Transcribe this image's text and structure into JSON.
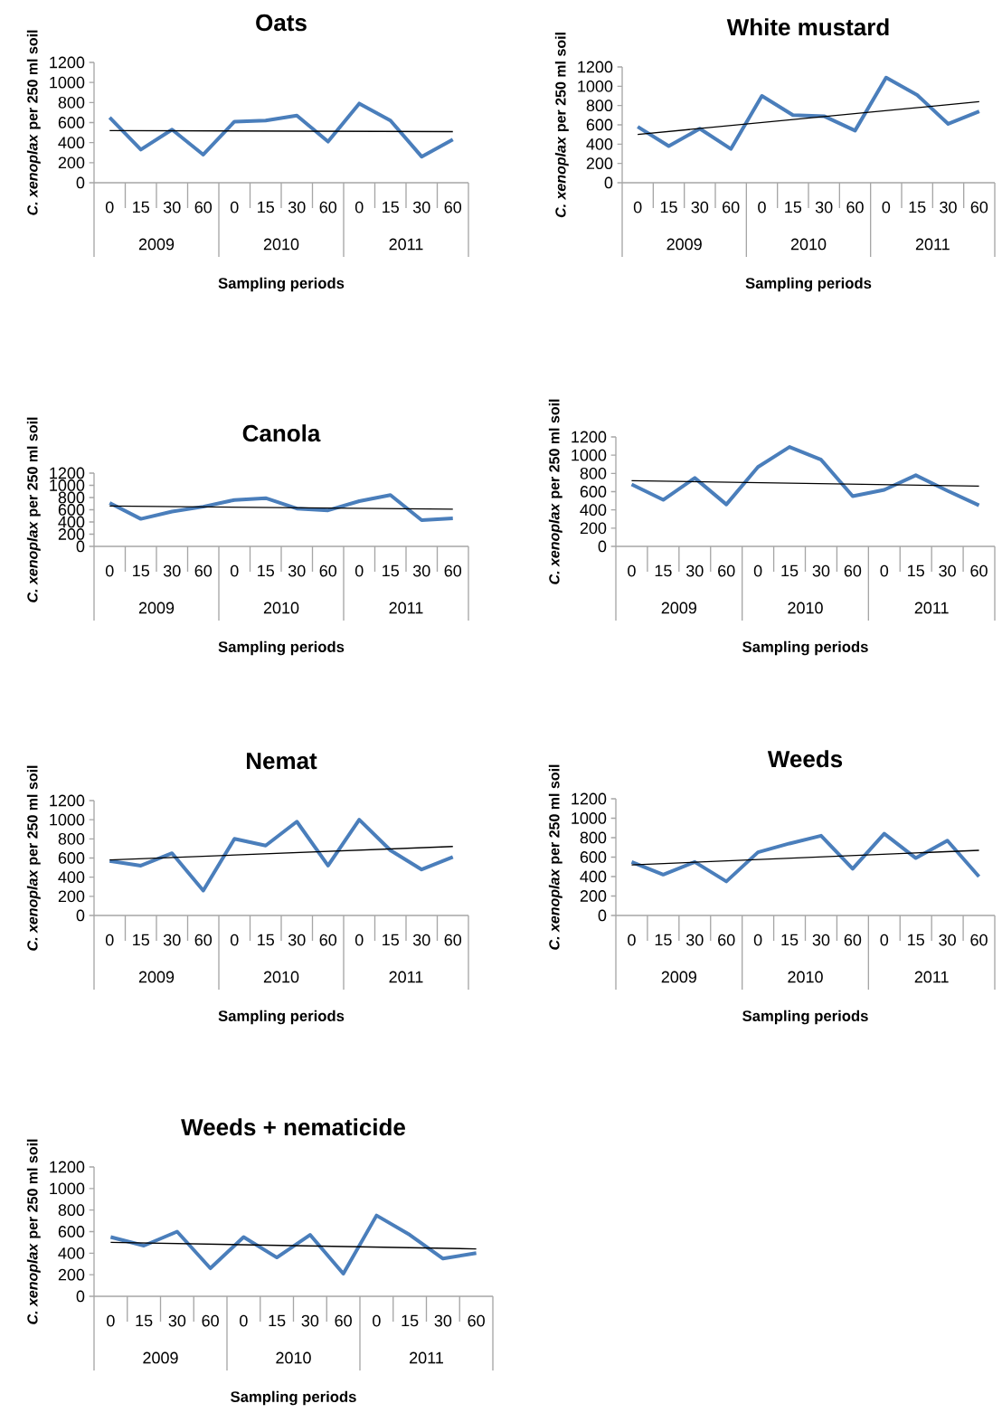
{
  "chart_data": [
    {
      "type": "line",
      "title": "Oats",
      "xlabel": "Sampling periods",
      "ylabel": "*C. xenoplax*  per 250 ml soil",
      "categories": [
        "0",
        "15",
        "30",
        "60",
        "0",
        "15",
        "30",
        "60",
        "0",
        "15",
        "30",
        "60"
      ],
      "annotations": [
        "2009",
        "2010",
        "2011"
      ],
      "ylim": [
        0,
        1200
      ],
      "yticks": [
        0,
        200,
        400,
        600,
        800,
        1000,
        1200
      ],
      "marker": "none",
      "series": [
        {
          "color": "#4a7ebb",
          "values": [
            650,
            330,
            530,
            280,
            610,
            620,
            670,
            410,
            790,
            620,
            260,
            430
          ]
        },
        {
          "type": "line",
          "color": "#000000",
          "values": [
            520,
            null,
            null,
            null,
            null,
            null,
            null,
            null,
            null,
            null,
            null,
            510
          ]
        }
      ]
    },
    {
      "type": "line",
      "title": "White mustard",
      "xlabel": "Sampling periods",
      "ylabel": "*C. xenoplax*  per 250 ml soil",
      "categories": [
        "0",
        "15",
        "30",
        "60",
        "0",
        "15",
        "30",
        "60",
        "0",
        "15",
        "30",
        "60"
      ],
      "annotations": [
        "2009",
        "2010",
        "2011"
      ],
      "ylim": [
        0,
        1200
      ],
      "yticks": [
        0,
        200,
        400,
        600,
        800,
        1000,
        1200
      ],
      "marker": "none",
      "series": [
        {
          "color": "#4a7ebb",
          "values": [
            580,
            380,
            560,
            350,
            900,
            700,
            690,
            540,
            1090,
            910,
            610,
            740
          ]
        },
        {
          "type": "line",
          "color": "#000000",
          "values": [
            500,
            null,
            null,
            null,
            null,
            null,
            null,
            null,
            null,
            null,
            null,
            840
          ]
        }
      ]
    },
    {
      "type": "line",
      "title": "Canola",
      "xlabel": "Sampling periods",
      "ylabel": "*C. xenoplax* per 250 ml soil",
      "categories": [
        "0",
        "15",
        "30",
        "60",
        "0",
        "15",
        "30",
        "60",
        "0",
        "15",
        "30",
        "60"
      ],
      "annotations": [
        "2009",
        "2010",
        "2011"
      ],
      "ylim": [
        0,
        1200
      ],
      "yticks": [
        0,
        200,
        400,
        600,
        800,
        1000,
        1200
      ],
      "marker": "none",
      "series": [
        {
          "color": "#4a7ebb",
          "values": [
            710,
            450,
            570,
            650,
            760,
            790,
            620,
            590,
            740,
            840,
            430,
            460
          ]
        },
        {
          "type": "line",
          "color": "#000000",
          "values": [
            660,
            null,
            null,
            null,
            null,
            null,
            null,
            null,
            null,
            null,
            null,
            610
          ]
        }
      ]
    },
    {
      "type": "line",
      "xlabel": "Sampling periods",
      "ylabel": "*C. xenoplax* per 250 ml soil",
      "categories": [
        "0",
        "15",
        "30",
        "60",
        "0",
        "15",
        "30",
        "60",
        "0",
        "15",
        "30",
        "60"
      ],
      "annotations": [
        "2009",
        "2010",
        "2011"
      ],
      "ylim": [
        0,
        1200
      ],
      "yticks": [
        0,
        200,
        400,
        600,
        800,
        1000,
        1200
      ],
      "marker": "none",
      "series": [
        {
          "color": "#4a7ebb",
          "values": [
            680,
            510,
            750,
            460,
            870,
            1090,
            950,
            550,
            620,
            780,
            610,
            450
          ]
        },
        {
          "type": "line",
          "color": "#000000",
          "values": [
            720,
            null,
            null,
            null,
            null,
            null,
            null,
            null,
            null,
            null,
            null,
            660
          ]
        }
      ]
    },
    {
      "type": "line",
      "title": "Nemat",
      "xlabel": "Sampling periods",
      "ylabel": "*C. xenoplax* per 250 ml soil",
      "categories": [
        "0",
        "15",
        "30",
        "60",
        "0",
        "15",
        "30",
        "60",
        "0",
        "15",
        "30",
        "60"
      ],
      "annotations": [
        "2009",
        "2010",
        "2011"
      ],
      "ylim": [
        0,
        1200
      ],
      "yticks": [
        0,
        200,
        400,
        600,
        800,
        1000,
        1200
      ],
      "marker": "none",
      "series": [
        {
          "color": "#4a7ebb",
          "values": [
            570,
            520,
            650,
            260,
            800,
            730,
            980,
            520,
            1000,
            680,
            480,
            610
          ]
        },
        {
          "type": "line",
          "color": "#000000",
          "values": [
            580,
            null,
            null,
            null,
            null,
            null,
            null,
            null,
            null,
            null,
            null,
            720
          ]
        }
      ]
    },
    {
      "type": "line",
      "title": "Weeds",
      "xlabel": "Sampling periods",
      "ylabel": "*C. xenoplax* per 250 ml soil",
      "categories": [
        "0",
        "15",
        "30",
        "60",
        "0",
        "15",
        "30",
        "60",
        "0",
        "15",
        "30",
        "60"
      ],
      "annotations": [
        "2009",
        "2010",
        "2011"
      ],
      "ylim": [
        0,
        1200
      ],
      "yticks": [
        0,
        200,
        400,
        600,
        800,
        1000,
        1200
      ],
      "marker": "none",
      "series": [
        {
          "color": "#4a7ebb",
          "values": [
            550,
            420,
            550,
            350,
            650,
            740,
            820,
            480,
            840,
            590,
            770,
            400
          ]
        },
        {
          "type": "line",
          "color": "#000000",
          "values": [
            520,
            null,
            null,
            null,
            null,
            null,
            null,
            null,
            null,
            null,
            null,
            670
          ]
        }
      ]
    },
    {
      "type": "line",
      "title": "Weeds + nematicide",
      "xlabel": "Sampling periods",
      "ylabel": "*C. xenoplax* per 250 ml soil",
      "categories": [
        "0",
        "15",
        "30",
        "60",
        "0",
        "15",
        "30",
        "60",
        "0",
        "15",
        "30",
        "60"
      ],
      "annotations": [
        "2009",
        "2010",
        "2011"
      ],
      "ylim": [
        0,
        1200
      ],
      "yticks": [
        0,
        200,
        400,
        600,
        800,
        1000,
        1200
      ],
      "marker": "none",
      "series": [
        {
          "color": "#4a7ebb",
          "values": [
            550,
            470,
            600,
            260,
            550,
            360,
            570,
            210,
            750,
            570,
            350,
            400
          ]
        },
        {
          "type": "line",
          "color": "#000000",
          "values": [
            500,
            null,
            null,
            null,
            null,
            null,
            null,
            null,
            null,
            null,
            null,
            440
          ]
        }
      ]
    }
  ]
}
